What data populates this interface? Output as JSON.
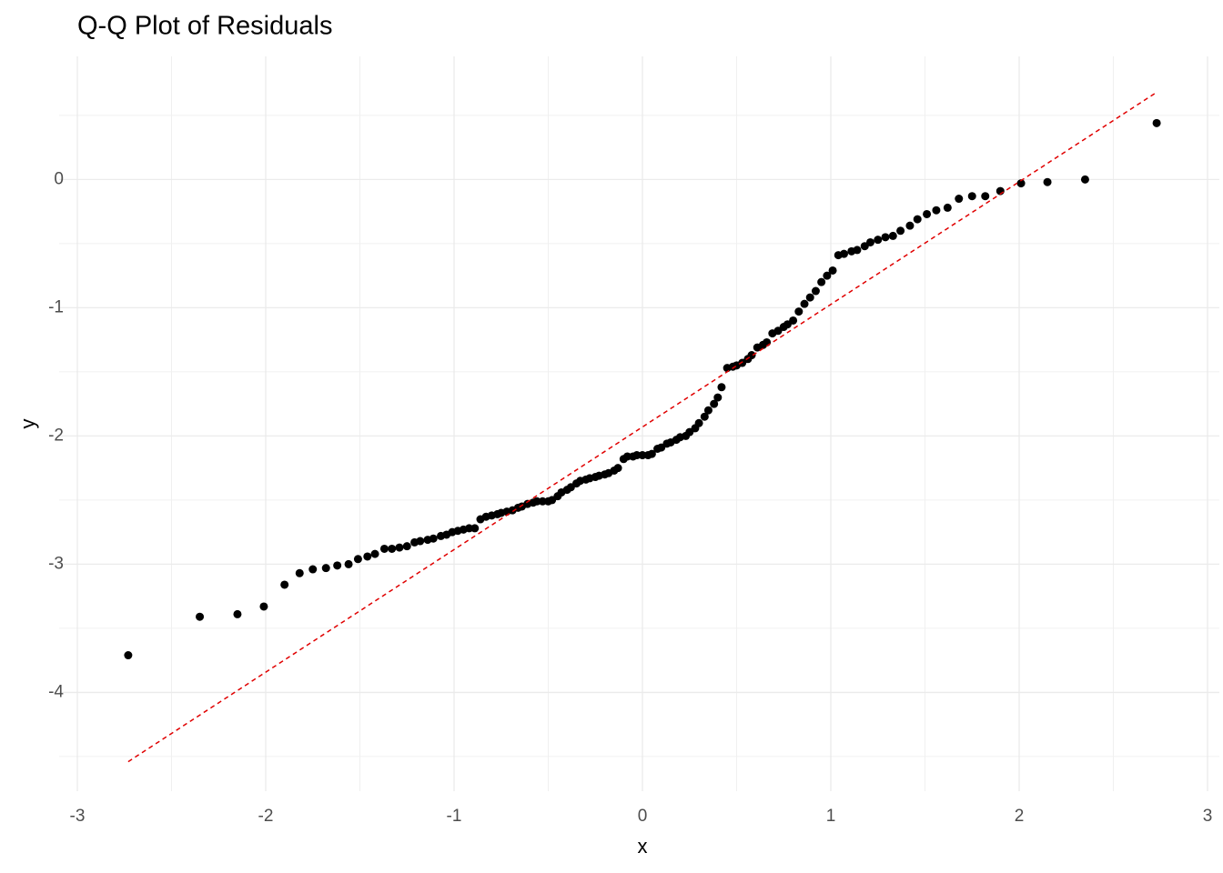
{
  "chart_data": {
    "type": "scatter",
    "title": "Q-Q Plot of Residuals",
    "x_label": "x",
    "y_label": "y",
    "xlim": [
      -3,
      3
    ],
    "ylim": [
      -4.77,
      0.96
    ],
    "xticks": [
      -3,
      -2,
      -1,
      0,
      1,
      2,
      3
    ],
    "yticks": [
      -4,
      -3,
      -2,
      -1,
      0
    ],
    "grid": true,
    "color": "#000000",
    "x": [
      -2.73,
      -2.35,
      -2.15,
      -2.01,
      -1.9,
      -1.82,
      -1.75,
      -1.68,
      -1.62,
      -1.56,
      -1.51,
      -1.46,
      -1.42,
      -1.37,
      -1.33,
      -1.29,
      -1.25,
      -1.21,
      -1.18,
      -1.14,
      -1.11,
      -1.07,
      -1.04,
      -1.01,
      -0.98,
      -0.95,
      -0.92,
      -0.89,
      -0.86,
      -0.83,
      -0.8,
      -0.77,
      -0.75,
      -0.72,
      -0.69,
      -0.66,
      -0.64,
      -0.61,
      -0.58,
      -0.56,
      -0.53,
      -0.5,
      -0.48,
      -0.45,
      -0.43,
      -0.4,
      -0.38,
      -0.35,
      -0.33,
      -0.3,
      -0.28,
      -0.25,
      -0.23,
      -0.2,
      -0.18,
      -0.15,
      -0.13,
      -0.1,
      -0.08,
      -0.05,
      -0.03,
      0.0,
      0.03,
      0.05,
      0.08,
      0.1,
      0.13,
      0.15,
      0.18,
      0.2,
      0.23,
      0.25,
      0.28,
      0.3,
      0.33,
      0.35,
      0.38,
      0.4,
      0.42,
      0.45,
      0.48,
      0.5,
      0.53,
      0.56,
      0.58,
      0.61,
      0.64,
      0.66,
      0.69,
      0.72,
      0.75,
      0.77,
      0.8,
      0.83,
      0.86,
      0.89,
      0.92,
      0.95,
      0.98,
      1.01,
      1.04,
      1.07,
      1.11,
      1.14,
      1.18,
      1.21,
      1.25,
      1.29,
      1.33,
      1.37,
      1.42,
      1.46,
      1.51,
      1.56,
      1.62,
      1.68,
      1.75,
      1.82,
      1.9,
      2.01,
      2.15,
      2.35,
      2.73
    ],
    "y": [
      -3.71,
      -3.41,
      -3.39,
      -3.33,
      -3.16,
      -3.07,
      -3.04,
      -3.03,
      -3.01,
      -3.0,
      -2.96,
      -2.94,
      -2.92,
      -2.88,
      -2.88,
      -2.87,
      -2.86,
      -2.83,
      -2.82,
      -2.81,
      -2.8,
      -2.78,
      -2.77,
      -2.75,
      -2.74,
      -2.73,
      -2.72,
      -2.72,
      -2.65,
      -2.63,
      -2.62,
      -2.61,
      -2.6,
      -2.59,
      -2.58,
      -2.56,
      -2.55,
      -2.53,
      -2.52,
      -2.51,
      -2.51,
      -2.51,
      -2.5,
      -2.47,
      -2.44,
      -2.42,
      -2.4,
      -2.37,
      -2.35,
      -2.34,
      -2.33,
      -2.32,
      -2.31,
      -2.3,
      -2.29,
      -2.27,
      -2.25,
      -2.18,
      -2.16,
      -2.16,
      -2.15,
      -2.15,
      -2.15,
      -2.14,
      -2.1,
      -2.09,
      -2.06,
      -2.05,
      -2.03,
      -2.01,
      -2.0,
      -1.97,
      -1.94,
      -1.9,
      -1.85,
      -1.8,
      -1.75,
      -1.7,
      -1.62,
      -1.47,
      -1.46,
      -1.45,
      -1.43,
      -1.4,
      -1.37,
      -1.31,
      -1.29,
      -1.27,
      -1.2,
      -1.18,
      -1.15,
      -1.13,
      -1.1,
      -1.03,
      -0.97,
      -0.92,
      -0.87,
      -0.8,
      -0.75,
      -0.71,
      -0.59,
      -0.58,
      -0.56,
      -0.55,
      -0.52,
      -0.49,
      -0.47,
      -0.45,
      -0.44,
      -0.4,
      -0.36,
      -0.31,
      -0.27,
      -0.24,
      -0.22,
      -0.15,
      -0.13,
      -0.13,
      -0.09,
      -0.03,
      -0.02,
      0.0,
      0.44
    ],
    "reference_line": {
      "x": [
        -2.73,
        2.73
      ],
      "y": [
        -4.54,
        0.68
      ],
      "color": "#e00000"
    }
  }
}
